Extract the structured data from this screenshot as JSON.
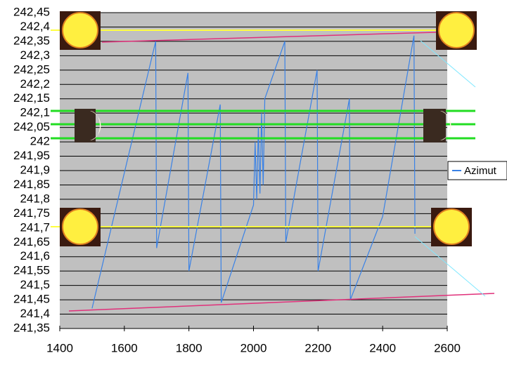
{
  "chart_data": {
    "type": "line",
    "x": [
      1500,
      1697,
      1700,
      1797,
      1800,
      1897,
      1900,
      2000,
      2005,
      2010,
      2015,
      2020,
      2025,
      2030,
      2035,
      2097,
      2100,
      2197,
      2200,
      2297,
      2300,
      2400,
      2497,
      2500
    ],
    "series": [
      {
        "name": "Azimut",
        "color": "#3a82e6",
        "values": [
          241.42,
          242.35,
          241.63,
          242.24,
          241.55,
          242.13,
          241.44,
          241.78,
          242.0,
          241.8,
          242.05,
          241.82,
          242.1,
          241.85,
          242.15,
          242.35,
          241.65,
          242.25,
          241.55,
          242.15,
          241.45,
          241.74,
          242.37,
          241.68
        ]
      }
    ],
    "xlim": [
      1400,
      2600
    ],
    "xticks": [
      1400,
      1600,
      1800,
      2000,
      2200,
      2400,
      2600
    ],
    "ylim": [
      241.35,
      242.45
    ],
    "yticks": [
      {
        "value": 241.35,
        "label": "241,35"
      },
      {
        "value": 241.4,
        "label": "241,4"
      },
      {
        "value": 241.45,
        "label": "241,45"
      },
      {
        "value": 241.5,
        "label": "241,5"
      },
      {
        "value": 241.55,
        "label": "241,55"
      },
      {
        "value": 241.6,
        "label": "241,6"
      },
      {
        "value": 241.65,
        "label": "241,65"
      },
      {
        "value": 241.7,
        "label": "241,7"
      },
      {
        "value": 241.75,
        "label": "241,75"
      },
      {
        "value": 241.8,
        "label": "241,8"
      },
      {
        "value": 241.85,
        "label": "241,85"
      },
      {
        "value": 241.9,
        "label": "241,9"
      },
      {
        "value": 241.95,
        "label": "241,95"
      },
      {
        "value": 242,
        "label": "242"
      },
      {
        "value": 242.05,
        "label": "242,05"
      },
      {
        "value": 242.1,
        "label": "242,1"
      },
      {
        "value": 242.15,
        "label": "242,15"
      },
      {
        "value": 242.2,
        "label": "242,2"
      },
      {
        "value": 242.25,
        "label": "242,25"
      },
      {
        "value": 242.3,
        "label": "242,3"
      },
      {
        "value": 242.35,
        "label": "242,35"
      },
      {
        "value": 242.4,
        "label": "242,4"
      },
      {
        "value": 242.45,
        "label": "242,45"
      }
    ],
    "grid": true,
    "legend": "right"
  }
}
